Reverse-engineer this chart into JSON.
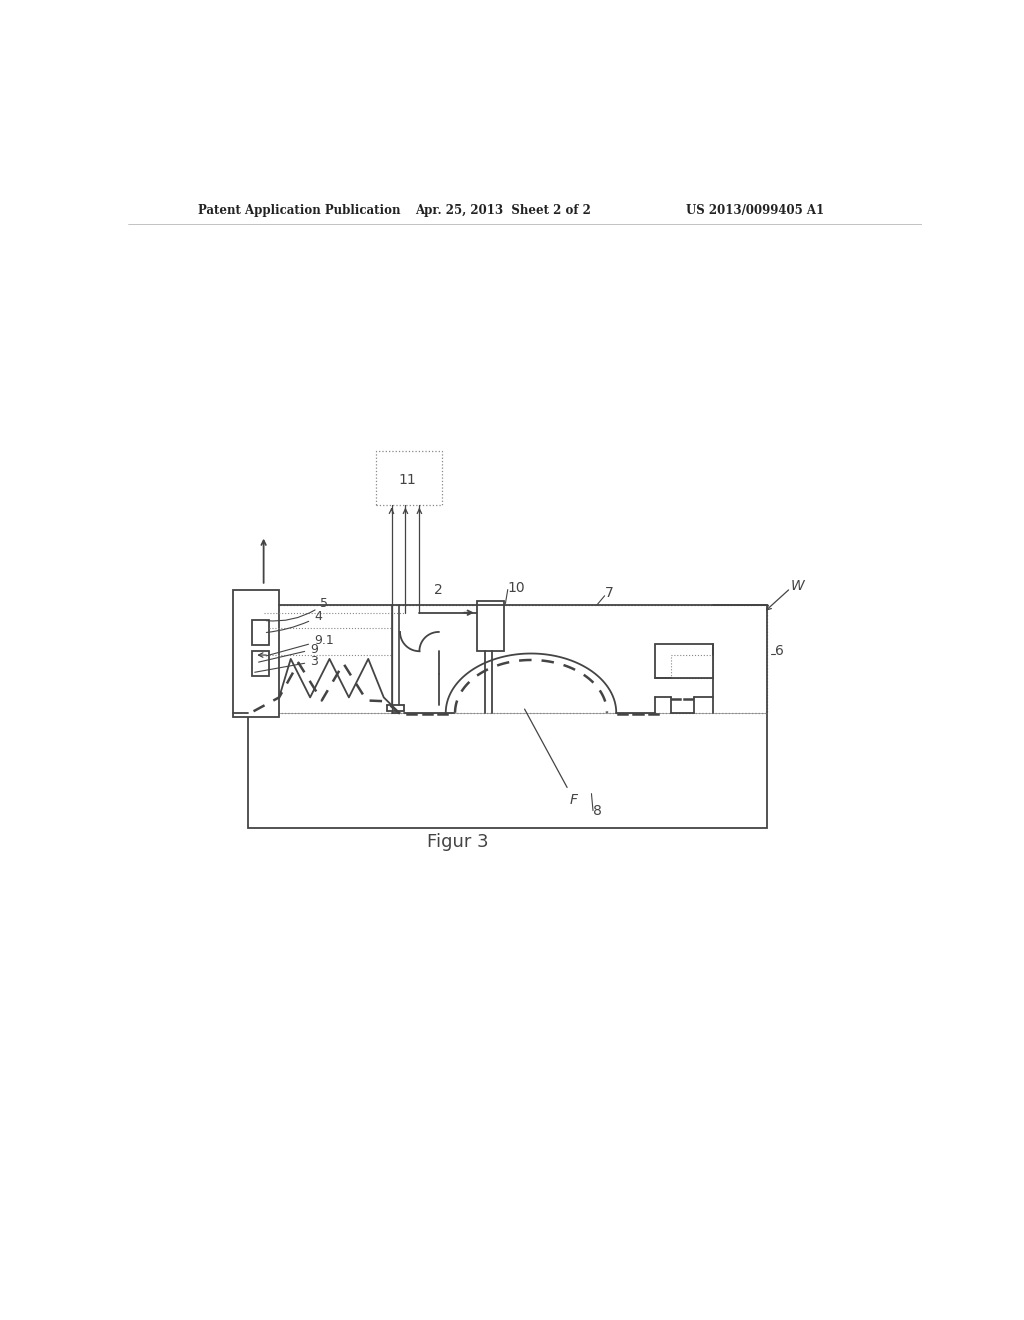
{
  "bg_color": "#ffffff",
  "line_color": "#444444",
  "dot_color": "#888888",
  "title_left": "Patent Application Publication",
  "title_mid": "Apr. 25, 2013  Sheet 2 of 2",
  "title_right": "US 2013/0099405 A1",
  "fig_label": "Figur 3"
}
